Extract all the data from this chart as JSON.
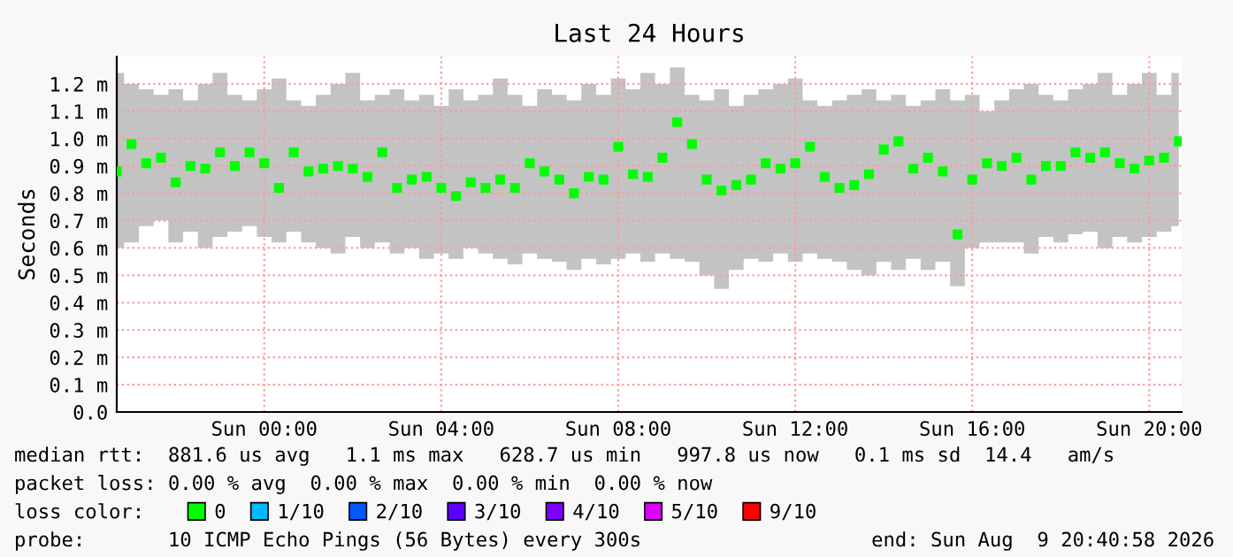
{
  "chart_data": {
    "type": "scatter",
    "title": "Last 24 Hours",
    "ylabel": "Seconds",
    "x": [
      "2026-08-08T20:40",
      "2026-08-08T21:00",
      "2026-08-08T21:20",
      "2026-08-08T21:40",
      "2026-08-08T22:00",
      "2026-08-08T22:20",
      "2026-08-08T22:40",
      "2026-08-08T23:00",
      "2026-08-08T23:20",
      "2026-08-08T23:40",
      "2026-08-09T00:00",
      "2026-08-09T00:20",
      "2026-08-09T00:40",
      "2026-08-09T01:00",
      "2026-08-09T01:20",
      "2026-08-09T01:40",
      "2026-08-09T02:00",
      "2026-08-09T02:20",
      "2026-08-09T02:40",
      "2026-08-09T03:00",
      "2026-08-09T03:20",
      "2026-08-09T03:40",
      "2026-08-09T04:00",
      "2026-08-09T04:20",
      "2026-08-09T04:40",
      "2026-08-09T05:00",
      "2026-08-09T05:20",
      "2026-08-09T05:40",
      "2026-08-09T06:00",
      "2026-08-09T06:20",
      "2026-08-09T06:40",
      "2026-08-09T07:00",
      "2026-08-09T07:20",
      "2026-08-09T07:40",
      "2026-08-09T08:00",
      "2026-08-09T08:20",
      "2026-08-09T08:40",
      "2026-08-09T09:00",
      "2026-08-09T09:20",
      "2026-08-09T09:40",
      "2026-08-09T10:00",
      "2026-08-09T10:20",
      "2026-08-09T10:40",
      "2026-08-09T11:00",
      "2026-08-09T11:20",
      "2026-08-09T11:40",
      "2026-08-09T12:00",
      "2026-08-09T12:20",
      "2026-08-09T12:40",
      "2026-08-09T13:00",
      "2026-08-09T13:20",
      "2026-08-09T13:40",
      "2026-08-09T14:00",
      "2026-08-09T14:20",
      "2026-08-09T14:40",
      "2026-08-09T15:00",
      "2026-08-09T15:20",
      "2026-08-09T15:40",
      "2026-08-09T16:00",
      "2026-08-09T16:20",
      "2026-08-09T16:40",
      "2026-08-09T17:00",
      "2026-08-09T17:20",
      "2026-08-09T17:40",
      "2026-08-09T18:00",
      "2026-08-09T18:20",
      "2026-08-09T18:40",
      "2026-08-09T19:00",
      "2026-08-09T19:20",
      "2026-08-09T19:40",
      "2026-08-09T20:00",
      "2026-08-09T20:20",
      "2026-08-09T20:40"
    ],
    "series": [
      {
        "name": "0",
        "color": "#00ff00",
        "values": [
          0.88,
          0.98,
          0.91,
          0.93,
          0.84,
          0.9,
          0.89,
          0.95,
          0.9,
          0.95,
          0.91,
          0.82,
          0.95,
          0.88,
          0.89,
          0.9,
          0.89,
          0.86,
          0.95,
          0.82,
          0.85,
          0.86,
          0.82,
          0.79,
          0.84,
          0.82,
          0.85,
          0.82,
          0.91,
          0.88,
          0.85,
          0.8,
          0.86,
          0.85,
          0.97,
          0.87,
          0.86,
          0.93,
          1.06,
          0.98,
          0.85,
          0.81,
          0.83,
          0.85,
          0.91,
          0.89,
          0.91,
          0.97,
          0.86,
          0.82,
          0.83,
          0.87,
          0.96,
          0.99,
          0.89,
          0.93,
          0.88,
          0.65,
          0.85,
          0.91,
          0.9,
          0.93,
          0.85,
          0.9,
          0.9,
          0.95,
          0.93,
          0.95,
          0.91,
          0.89,
          0.92,
          0.93,
          0.99
        ],
        "lower": [
          0.6,
          0.62,
          0.68,
          0.7,
          0.62,
          0.66,
          0.6,
          0.64,
          0.66,
          0.68,
          0.64,
          0.62,
          0.66,
          0.62,
          0.6,
          0.58,
          0.64,
          0.6,
          0.62,
          0.58,
          0.6,
          0.56,
          0.58,
          0.56,
          0.6,
          0.58,
          0.56,
          0.54,
          0.58,
          0.56,
          0.55,
          0.52,
          0.56,
          0.54,
          0.56,
          0.58,
          0.55,
          0.58,
          0.56,
          0.55,
          0.5,
          0.45,
          0.52,
          0.56,
          0.55,
          0.58,
          0.55,
          0.58,
          0.56,
          0.55,
          0.52,
          0.5,
          0.55,
          0.52,
          0.56,
          0.52,
          0.55,
          0.46,
          0.6,
          0.62,
          0.62,
          0.62,
          0.58,
          0.64,
          0.62,
          0.65,
          0.66,
          0.6,
          0.64,
          0.62,
          0.64,
          0.66,
          0.68
        ],
        "upper": [
          1.24,
          1.2,
          1.18,
          1.16,
          1.18,
          1.14,
          1.2,
          1.24,
          1.16,
          1.14,
          1.18,
          1.22,
          1.14,
          1.12,
          1.16,
          1.2,
          1.24,
          1.14,
          1.16,
          1.18,
          1.14,
          1.16,
          1.12,
          1.18,
          1.14,
          1.16,
          1.22,
          1.16,
          1.12,
          1.18,
          1.16,
          1.14,
          1.2,
          1.16,
          1.22,
          1.18,
          1.24,
          1.2,
          1.26,
          1.16,
          1.14,
          1.18,
          1.12,
          1.16,
          1.18,
          1.2,
          1.22,
          1.14,
          1.12,
          1.14,
          1.16,
          1.18,
          1.14,
          1.16,
          1.12,
          1.14,
          1.18,
          1.14,
          1.16,
          1.1,
          1.14,
          1.18,
          1.2,
          1.16,
          1.14,
          1.18,
          1.2,
          1.24,
          1.16,
          1.2,
          1.24,
          1.16,
          1.24
        ]
      },
      {
        "name": "1/10",
        "color": "#00b8ff",
        "values": [
          null,
          null,
          null,
          null,
          null,
          null,
          null,
          null,
          null,
          null,
          null,
          null,
          null,
          null,
          null,
          null,
          null,
          null,
          null,
          null,
          null,
          null,
          null,
          null,
          null,
          null,
          null,
          null,
          null,
          null,
          null,
          null,
          null,
          null,
          null,
          null,
          null,
          null,
          null,
          null,
          null,
          null,
          null,
          null,
          null,
          null,
          null,
          null,
          null,
          null,
          null,
          null,
          null,
          null,
          null,
          null,
          null,
          null,
          null,
          null,
          null,
          null,
          null,
          null,
          null,
          null,
          null,
          null,
          null,
          null,
          null,
          null,
          null
        ]
      },
      {
        "name": "2/10",
        "color": "#0059ff",
        "values": [
          null,
          null,
          null,
          null,
          null,
          null,
          null,
          null,
          null,
          null,
          null,
          null,
          null,
          null,
          null,
          null,
          null,
          null,
          null,
          null,
          null,
          null,
          null,
          null,
          null,
          null,
          null,
          null,
          null,
          null,
          null,
          null,
          null,
          null,
          null,
          null,
          null,
          null,
          null,
          null,
          null,
          null,
          null,
          null,
          null,
          null,
          null,
          null,
          null,
          null,
          null,
          null,
          null,
          null,
          null,
          null,
          null,
          null,
          null,
          null,
          null,
          null,
          null,
          null,
          null,
          null,
          null,
          null,
          null,
          null,
          null,
          null,
          null
        ]
      },
      {
        "name": "3/10",
        "color": "#5e00ff",
        "values": [
          null,
          null,
          null,
          null,
          null,
          null,
          null,
          null,
          null,
          null,
          null,
          null,
          null,
          null,
          null,
          null,
          null,
          null,
          null,
          null,
          null,
          null,
          null,
          null,
          null,
          null,
          null,
          null,
          null,
          null,
          null,
          null,
          null,
          null,
          null,
          null,
          null,
          null,
          null,
          null,
          null,
          null,
          null,
          null,
          null,
          null,
          null,
          null,
          null,
          null,
          null,
          null,
          null,
          null,
          null,
          null,
          null,
          null,
          null,
          null,
          null,
          null,
          null,
          null,
          null,
          null,
          null,
          null,
          null,
          null,
          null,
          null,
          null
        ]
      },
      {
        "name": "4/10",
        "color": "#7e00ff",
        "values": [
          null,
          null,
          null,
          null,
          null,
          null,
          null,
          null,
          null,
          null,
          null,
          null,
          null,
          null,
          null,
          null,
          null,
          null,
          null,
          null,
          null,
          null,
          null,
          null,
          null,
          null,
          null,
          null,
          null,
          null,
          null,
          null,
          null,
          null,
          null,
          null,
          null,
          null,
          null,
          null,
          null,
          null,
          null,
          null,
          null,
          null,
          null,
          null,
          null,
          null,
          null,
          null,
          null,
          null,
          null,
          null,
          null,
          null,
          null,
          null,
          null,
          null,
          null,
          null,
          null,
          null,
          null,
          null,
          null,
          null,
          null,
          null,
          null
        ]
      },
      {
        "name": "5/10",
        "color": "#dd00ff",
        "values": [
          null,
          null,
          null,
          null,
          null,
          null,
          null,
          null,
          null,
          null,
          null,
          null,
          null,
          null,
          null,
          null,
          null,
          null,
          null,
          null,
          null,
          null,
          null,
          null,
          null,
          null,
          null,
          null,
          null,
          null,
          null,
          null,
          null,
          null,
          null,
          null,
          null,
          null,
          null,
          null,
          null,
          null,
          null,
          null,
          null,
          null,
          null,
          null,
          null,
          null,
          null,
          null,
          null,
          null,
          null,
          null,
          null,
          null,
          null,
          null,
          null,
          null,
          null,
          null,
          null,
          null,
          null,
          null,
          null,
          null,
          null,
          null,
          null
        ]
      },
      {
        "name": "9/10",
        "color": "#ff0000",
        "values": [
          null,
          null,
          null,
          null,
          null,
          null,
          null,
          null,
          null,
          null,
          null,
          null,
          null,
          null,
          null,
          null,
          null,
          null,
          null,
          null,
          null,
          null,
          null,
          null,
          null,
          null,
          null,
          null,
          null,
          null,
          null,
          null,
          null,
          null,
          null,
          null,
          null,
          null,
          null,
          null,
          null,
          null,
          null,
          null,
          null,
          null,
          null,
          null,
          null,
          null,
          null,
          null,
          null,
          null,
          null,
          null,
          null,
          null,
          null,
          null,
          null,
          null,
          null,
          null,
          null,
          null,
          null,
          null,
          null,
          null,
          null,
          null,
          null
        ]
      }
    ],
    "marker": "square",
    "grid": true,
    "legend": "bottom",
    "xlim": [
      "2026-08-08T20:40",
      "2026-08-09T20:44"
    ],
    "xticks": [
      {
        "value": "2026-08-09T00:00",
        "label": "Sun 00:00"
      },
      {
        "value": "2026-08-09T04:00",
        "label": "Sun 04:00"
      },
      {
        "value": "2026-08-09T08:00",
        "label": "Sun 08:00"
      },
      {
        "value": "2026-08-09T12:00",
        "label": "Sun 12:00"
      },
      {
        "value": "2026-08-09T16:00",
        "label": "Sun 16:00"
      },
      {
        "value": "2026-08-09T20:00",
        "label": "Sun 20:00"
      }
    ],
    "ylim": [
      0,
      1.3
    ],
    "yticks": [
      {
        "value": 0,
        "label": "0.0"
      },
      {
        "value": 0.1,
        "label": "0.1 m"
      },
      {
        "value": 0.2,
        "label": "0.2 m"
      },
      {
        "value": 0.3,
        "label": "0.3 m"
      },
      {
        "value": 0.4,
        "label": "0.4 m"
      },
      {
        "value": 0.5,
        "label": "0.5 m"
      },
      {
        "value": 0.6,
        "label": "0.6 m"
      },
      {
        "value": 0.7,
        "label": "0.7 m"
      },
      {
        "value": 0.8,
        "label": "0.8 m"
      },
      {
        "value": 0.9,
        "label": "0.9 m"
      },
      {
        "value": 1.0,
        "label": "1.0 m"
      },
      {
        "value": 1.1,
        "label": "1.1 m"
      },
      {
        "value": 1.2,
        "label": "1.2 m"
      }
    ],
    "annotations": [
      "median rtt:  881.6 us avg   1.1 ms max   628.7 us min   997.8 us now   0.1 ms sd  14.4   am/s",
      "packet loss: 0.00 % avg  0.00 % max  0.00 % min  0.00 % now",
      "loss color:",
      "probe:       10 ICMP Echo Pings (56 Bytes) every 300s",
      "end: Sun Aug  9 20:40:58 2026"
    ]
  }
}
